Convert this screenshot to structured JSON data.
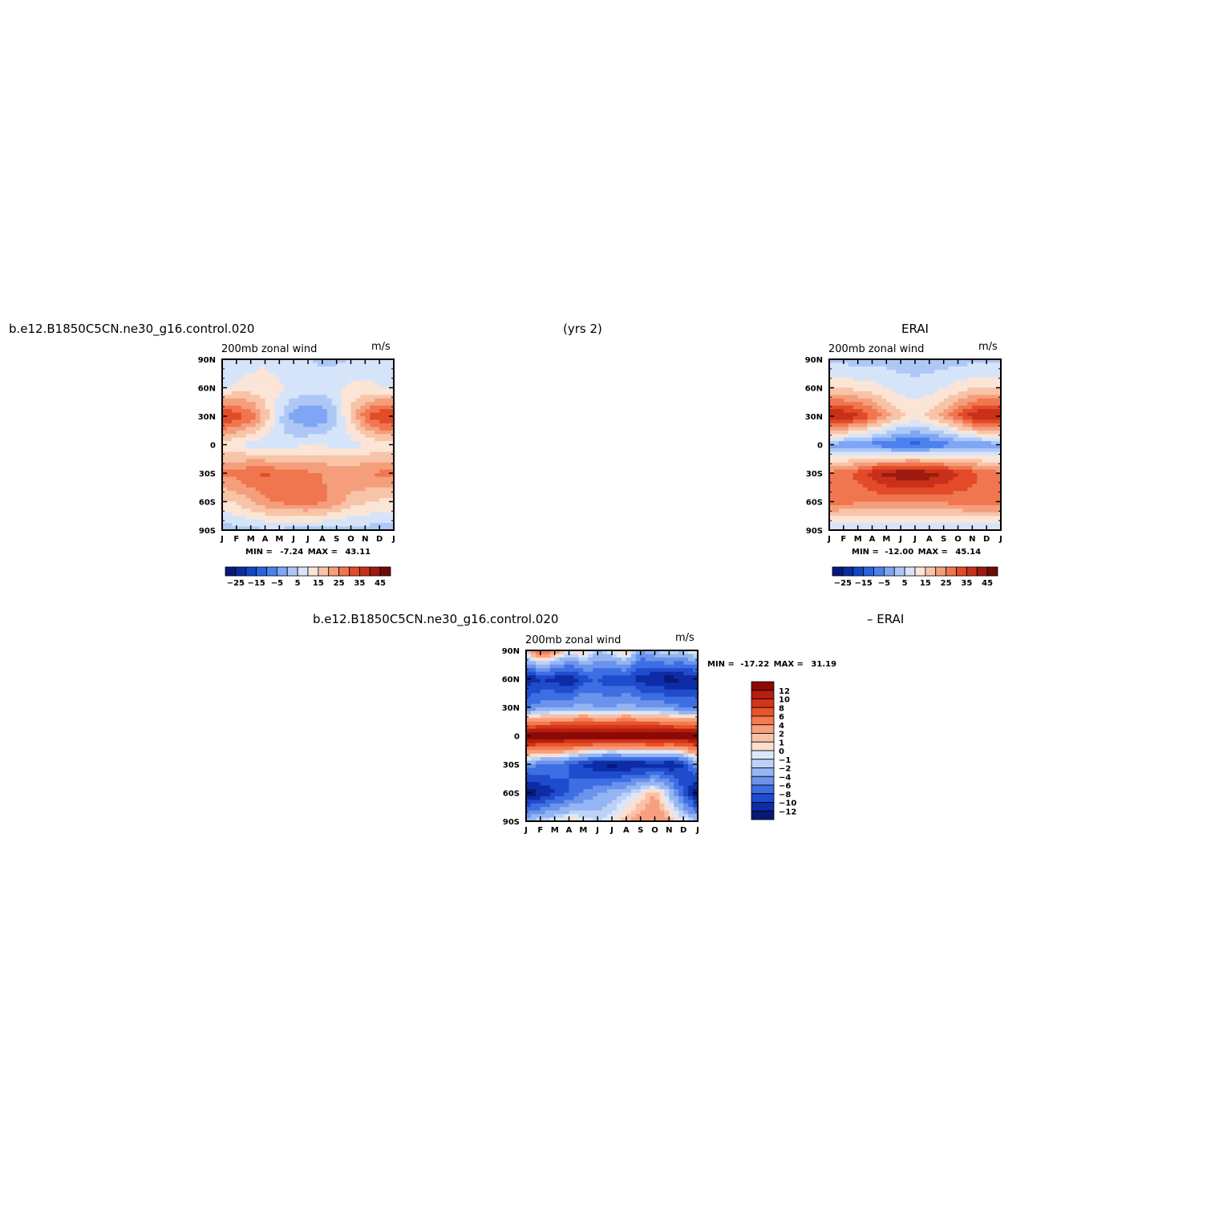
{
  "header": {
    "case_name": "b.e12.B1850C5CN.ne30_g16.control.020",
    "years": "(yrs 2)",
    "obs_name": "ERAI",
    "diff_case_name": "b.e12.B1850C5CN.ne30_g16.control.020",
    "diff_obs_name": "– ERAI"
  },
  "panels": [
    {
      "id": "model",
      "var_label": "200mb zonal wind",
      "units": "m/s",
      "min_label": "MIN =",
      "min": "-7.24",
      "max_label": "MAX =",
      "max": "43.11"
    },
    {
      "id": "obs",
      "var_label": "200mb zonal wind",
      "units": "m/s",
      "min_label": "MIN =",
      "min": "-12.00",
      "max_label": "MAX =",
      "max": "45.14"
    },
    {
      "id": "diff",
      "var_label": "200mb zonal wind",
      "units": "m/s",
      "min_label": "MIN =",
      "min": "-17.22",
      "max_label": "MAX =",
      "max": "31.19"
    }
  ],
  "axes": {
    "x_ticks": [
      "J",
      "F",
      "M",
      "A",
      "M",
      "J",
      "J",
      "A",
      "S",
      "O",
      "N",
      "D",
      "J"
    ],
    "y_ticks": [
      "90N",
      "60N",
      "30N",
      "0",
      "30S",
      "60S",
      "90S"
    ]
  },
  "colorbars": {
    "field_labels": [
      "-25",
      "-15",
      "-5",
      "5",
      "15",
      "25",
      "35",
      "45"
    ],
    "field_colors": [
      "#08187a",
      "#0c2ba0",
      "#1447c8",
      "#2a63e0",
      "#4d82ee",
      "#7ea6f4",
      "#aec8f6",
      "#d6e4fa",
      "#fbe5d6",
      "#f8c4a8",
      "#f59e7c",
      "#f07650",
      "#e24a28",
      "#c8301a",
      "#9c1a0e",
      "#6e0c06"
    ],
    "diff_labels": [
      "12",
      "10",
      "8",
      "6",
      "4",
      "2",
      "1",
      "0",
      "-1",
      "-2",
      "-4",
      "-6",
      "-8",
      "-10",
      "-12"
    ],
    "diff_colors": [
      "#8b0a05",
      "#b51d0f",
      "#d4341b",
      "#e85529",
      "#f37b4f",
      "#f79f7e",
      "#f9c1a6",
      "#fbe0d0",
      "#dce8fa",
      "#bcd2f8",
      "#94b5f3",
      "#6b93ec",
      "#3e6ee3",
      "#1f4ccc",
      "#0d2ca6",
      "#061a78"
    ]
  },
  "chart_data": [
    {
      "type": "heatmap",
      "title": "b.e12.B1850C5CN.ne30_g16.control.020",
      "subtitle": "200mb zonal wind",
      "units": "m/s",
      "x": [
        "J",
        "F",
        "M",
        "A",
        "M",
        "J",
        "J",
        "A",
        "S",
        "O",
        "N",
        "D",
        "J"
      ],
      "y": [
        "90N",
        "60N",
        "30N",
        "0",
        "30S",
        "60S",
        "90S"
      ],
      "values": [
        [
          5,
          6,
          8,
          9,
          7,
          6,
          5,
          4,
          4,
          5,
          6,
          6,
          5
        ],
        [
          9,
          11,
          12,
          13,
          11,
          9,
          8,
          8,
          9,
          11,
          12,
          10,
          9
        ],
        [
          36,
          34,
          28,
          18,
          6,
          -2,
          -6,
          -4,
          4,
          16,
          28,
          35,
          36
        ],
        [
          12,
          10,
          8,
          6,
          6,
          8,
          10,
          10,
          8,
          8,
          10,
          12,
          12
        ],
        [
          26,
          27,
          30,
          31,
          29,
          28,
          26,
          25,
          24,
          24,
          25,
          26,
          26
        ],
        [
          14,
          16,
          20,
          24,
          26,
          27,
          28,
          26,
          22,
          18,
          16,
          14,
          14
        ],
        [
          2,
          3,
          3,
          4,
          4,
          3,
          3,
          3,
          3,
          3,
          3,
          2,
          2
        ]
      ],
      "min": -7.24,
      "max": 43.11
    },
    {
      "type": "heatmap",
      "title": "ERAI",
      "subtitle": "200mb zonal wind",
      "units": "m/s",
      "x": [
        "J",
        "F",
        "M",
        "A",
        "M",
        "J",
        "J",
        "A",
        "S",
        "O",
        "N",
        "D",
        "J"
      ],
      "y": [
        "90N",
        "60N",
        "30N",
        "0",
        "30S",
        "60S",
        "90S"
      ],
      "values": [
        [
          3,
          3,
          3,
          3,
          3,
          2,
          2,
          2,
          2,
          3,
          3,
          3,
          3
        ],
        [
          14,
          14,
          13,
          12,
          10,
          8,
          7,
          8,
          10,
          12,
          14,
          15,
          14
        ],
        [
          40,
          40,
          36,
          30,
          22,
          16,
          14,
          16,
          22,
          30,
          38,
          42,
          40
        ],
        [
          -2,
          -3,
          -5,
          -7,
          -9,
          -11,
          -12,
          -10,
          -8,
          -6,
          -4,
          -3,
          -2
        ],
        [
          26,
          28,
          32,
          38,
          42,
          44,
          45,
          43,
          40,
          36,
          32,
          28,
          26
        ],
        [
          28,
          27,
          26,
          26,
          26,
          26,
          26,
          26,
          26,
          27,
          28,
          28,
          28
        ],
        [
          4,
          4,
          4,
          4,
          4,
          4,
          4,
          4,
          4,
          4,
          4,
          4,
          4
        ]
      ],
      "min": -12.0,
      "max": 45.14
    },
    {
      "type": "heatmap",
      "title": "b.e12.B1850C5CN.ne30_g16.control.020 – ERAI",
      "subtitle": "200mb zonal wind",
      "units": "m/s",
      "x": [
        "J",
        "F",
        "M",
        "A",
        "M",
        "J",
        "J",
        "A",
        "S",
        "O",
        "N",
        "D",
        "J"
      ],
      "y": [
        "90N",
        "60N",
        "30N",
        "0",
        "30S",
        "60S",
        "90S"
      ],
      "values": [
        [
          2,
          6,
          4,
          0,
          2,
          -2,
          0,
          2,
          -4,
          -2,
          0,
          -2,
          2
        ],
        [
          -12,
          -10,
          -11,
          -12,
          -9,
          -8,
          -10,
          -9,
          -11,
          -12,
          -13,
          -12,
          -12
        ],
        [
          -6,
          -5,
          -4,
          -4,
          -3,
          -4,
          -4,
          -3,
          -4,
          -4,
          -5,
          -6,
          -6
        ],
        [
          14,
          14,
          14,
          14,
          14,
          14,
          14,
          14,
          14,
          14,
          14,
          14,
          14
        ],
        [
          -4,
          -6,
          -6,
          -8,
          -10,
          -12,
          -13,
          -12,
          -12,
          -11,
          -12,
          -10,
          -4
        ],
        [
          -14,
          -12,
          -10,
          -8,
          -6,
          -4,
          -3,
          -2,
          0,
          2,
          -2,
          -8,
          -14
        ],
        [
          -2,
          -1,
          0,
          1,
          0,
          -1,
          0,
          2,
          3,
          4,
          2,
          0,
          -2
        ]
      ],
      "min": -17.22,
      "max": 31.19
    }
  ]
}
